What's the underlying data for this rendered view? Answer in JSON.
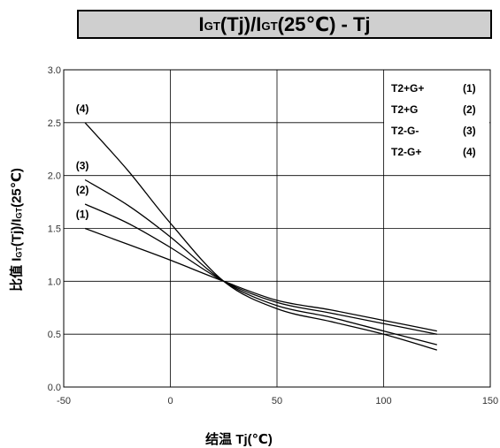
{
  "chart_data": {
    "type": "line",
    "title_parts": {
      "symbol": "I",
      "subscript": "GT",
      "open": "(Tj)/",
      "close": "(25℃) - Tj"
    },
    "xlabel": "结温 Tj(℃)",
    "ylabel_parts": {
      "prefix": "比值 I",
      "subscript": "GT",
      "open": "(Tj)/I",
      "close": "(25℃)"
    },
    "xlim": [
      -50,
      150
    ],
    "ylim": [
      0,
      3.0
    ],
    "x_ticks": [
      "-50",
      "0",
      "50",
      "100",
      "150"
    ],
    "y_ticks": [
      "0.0",
      "0.5",
      "1.0",
      "1.5",
      "2.0",
      "2.5",
      "3.0"
    ],
    "grid": true,
    "legend": {
      "placement": "top-right",
      "entries": [
        {
          "mode": "T2+G+",
          "id": "(1)"
        },
        {
          "mode": "T2+G",
          "id": "(2)"
        },
        {
          "mode": "T2-G-",
          "id": "(3)"
        },
        {
          "mode": "T2-G+",
          "id": "(4)"
        }
      ]
    },
    "series": [
      {
        "label": "(1)",
        "points": [
          [
            -40,
            1.5
          ],
          [
            -20,
            1.35
          ],
          [
            0,
            1.2
          ],
          [
            25,
            1.0
          ],
          [
            50,
            0.82
          ],
          [
            75,
            0.73
          ],
          [
            100,
            0.63
          ],
          [
            125,
            0.53
          ]
        ]
      },
      {
        "label": "(2)",
        "points": [
          [
            -40,
            1.73
          ],
          [
            -20,
            1.55
          ],
          [
            0,
            1.32
          ],
          [
            25,
            1.0
          ],
          [
            50,
            0.8
          ],
          [
            75,
            0.7
          ],
          [
            100,
            0.6
          ],
          [
            125,
            0.5
          ]
        ]
      },
      {
        "label": "(3)",
        "points": [
          [
            -40,
            1.96
          ],
          [
            -20,
            1.72
          ],
          [
            0,
            1.42
          ],
          [
            25,
            1.0
          ],
          [
            50,
            0.77
          ],
          [
            75,
            0.66
          ],
          [
            100,
            0.53
          ],
          [
            125,
            0.4
          ]
        ]
      },
      {
        "label": "(4)",
        "points": [
          [
            -40,
            2.5
          ],
          [
            -20,
            2.05
          ],
          [
            0,
            1.55
          ],
          [
            25,
            1.0
          ],
          [
            50,
            0.74
          ],
          [
            75,
            0.62
          ],
          [
            100,
            0.5
          ],
          [
            125,
            0.35
          ]
        ]
      }
    ]
  }
}
